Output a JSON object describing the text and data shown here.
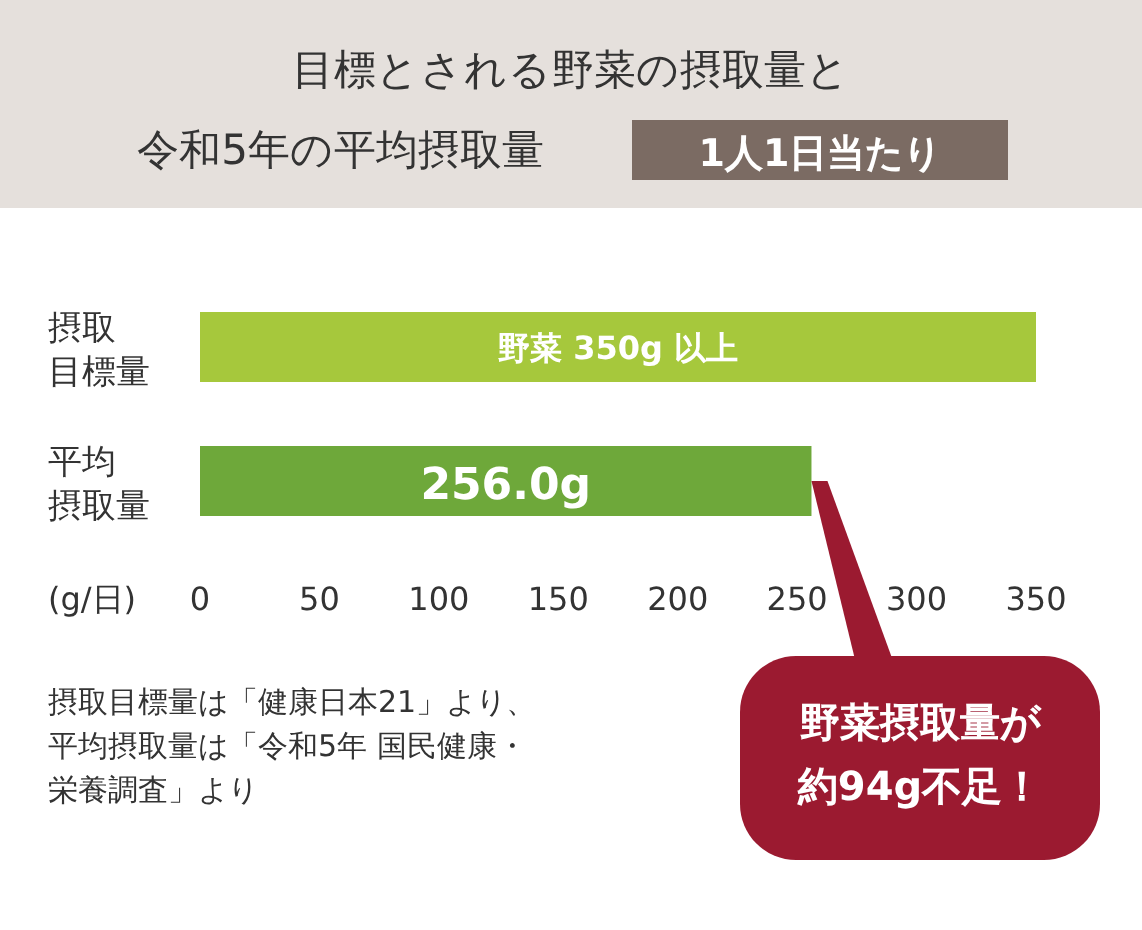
{
  "chart_data": {
    "type": "bar",
    "orientation": "horizontal",
    "title": "目標とされる野菜の摂取量と令和5年の平均摂取量",
    "subtitle": "1人1日当たり",
    "xlabel": "(g/日)",
    "categories": [
      "摂取目標量",
      "平均摂取量"
    ],
    "values": [
      350,
      256.0
    ],
    "colors": [
      "#a6c83c",
      "#6ea83a"
    ],
    "value_labels": [
      "野菜 350g 以上",
      "256.0g"
    ],
    "xlim": [
      0,
      350
    ],
    "xticks": [
      0,
      50,
      100,
      150,
      200,
      250,
      300,
      350
    ],
    "annotations": [
      "摂取目標量は「健康日本21」より、平均摂取量は「令和5年 国民健康・栄養調査」より",
      {
        "text": "野菜摂取量が約94g不足！",
        "x": 256.0,
        "y": "平均摂取量"
      }
    ]
  }
}
